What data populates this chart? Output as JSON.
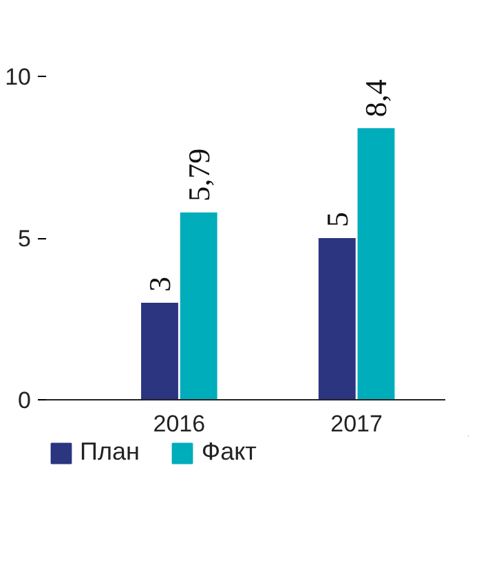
{
  "chart_data": {
    "type": "bar",
    "categories": [
      "2016",
      "2017"
    ],
    "series": [
      {
        "name": "План",
        "color": "#2b3580",
        "values": [
          3,
          5
        ]
      },
      {
        "name": "Факт",
        "color": "#00adbb",
        "values": [
          5.79,
          8.4
        ]
      }
    ],
    "ylim": [
      0,
      10
    ],
    "yticks": [
      0,
      5,
      10
    ],
    "value_labels": [
      [
        "3",
        "5"
      ],
      [
        "5,79",
        "8,4"
      ]
    ],
    "grid": false,
    "legend": "bottom left"
  }
}
